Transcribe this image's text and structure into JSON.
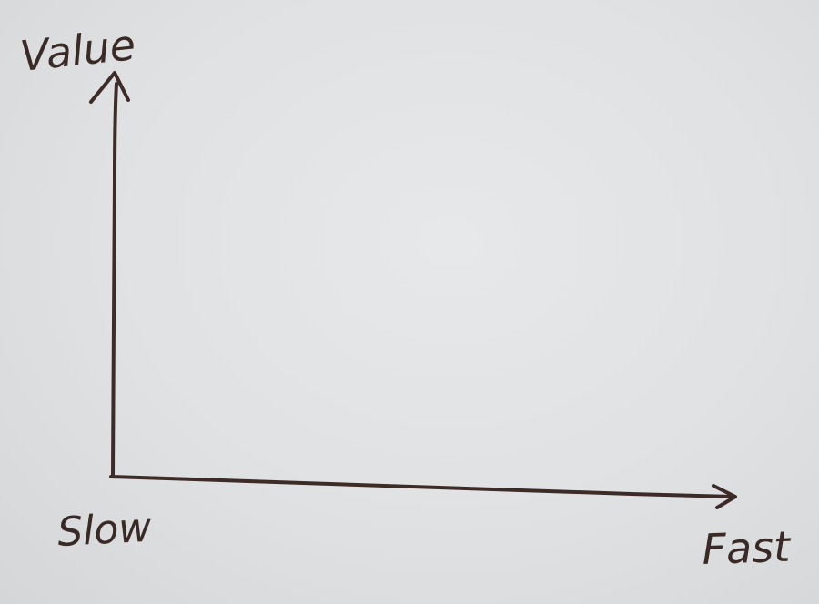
{
  "diagram": {
    "y_axis_label": "Value",
    "x_axis_start_label": "Slow",
    "x_axis_end_label": "Fast",
    "ink_color": "#3d2b27",
    "paper_color": "#e2e4e6"
  }
}
